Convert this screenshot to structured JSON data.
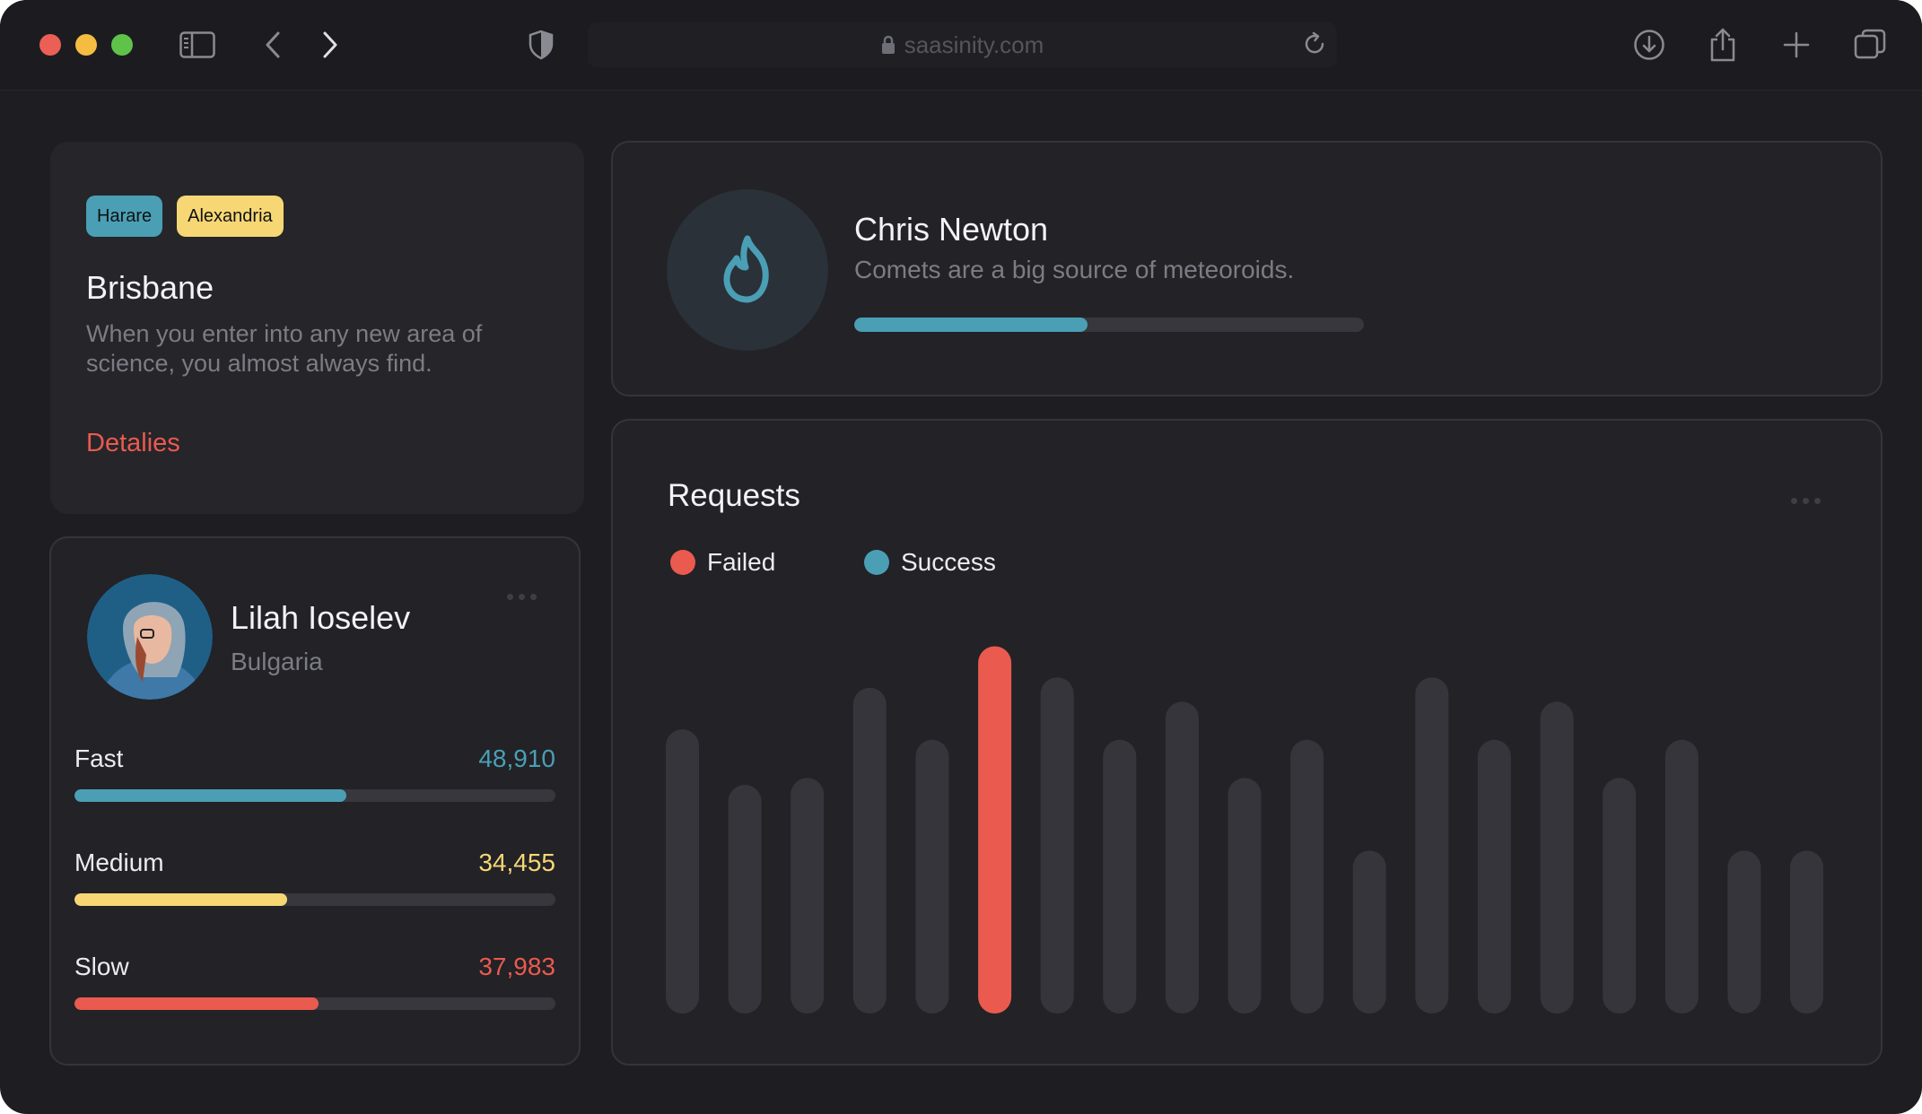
{
  "browser": {
    "url": "saasinity.com"
  },
  "city_card": {
    "tags": [
      {
        "label": "Harare",
        "color": "#4a9fb5"
      },
      {
        "label": "Alexandria",
        "color": "#f7d774"
      }
    ],
    "title": "Brisbane",
    "description": "When you enter into any new area of science, you almost always find.",
    "link_label": "Detalies"
  },
  "profile_card": {
    "name": "Lilah Ioselev",
    "country": "Bulgaria",
    "stats": [
      {
        "label": "Fast",
        "value": "48,910",
        "fraction": 0.565,
        "color": "#4a9fb5"
      },
      {
        "label": "Medium",
        "value": "34,455",
        "fraction": 0.443,
        "color": "#f7d774"
      },
      {
        "label": "Slow",
        "value": "37,983",
        "fraction": 0.507,
        "color": "#ea5a4f"
      }
    ]
  },
  "user_card": {
    "name": "Chris Newton",
    "subtitle": "Comets are a big source of meteoroids.",
    "progress": 0.458,
    "icon": "flame-icon"
  },
  "requests": {
    "title": "Requests",
    "legend": [
      {
        "label": "Failed",
        "color": "#ea5a4f"
      },
      {
        "label": "Success",
        "color": "#4a9fb5"
      }
    ]
  },
  "chart_data": {
    "type": "bar",
    "title": "Requests",
    "values": [
      82,
      66,
      68,
      94,
      79,
      106,
      97,
      79,
      90,
      68,
      79,
      47,
      97,
      79,
      90,
      68,
      79,
      47,
      47
    ],
    "highlight_index": 5,
    "ylim": [
      0,
      110
    ]
  }
}
